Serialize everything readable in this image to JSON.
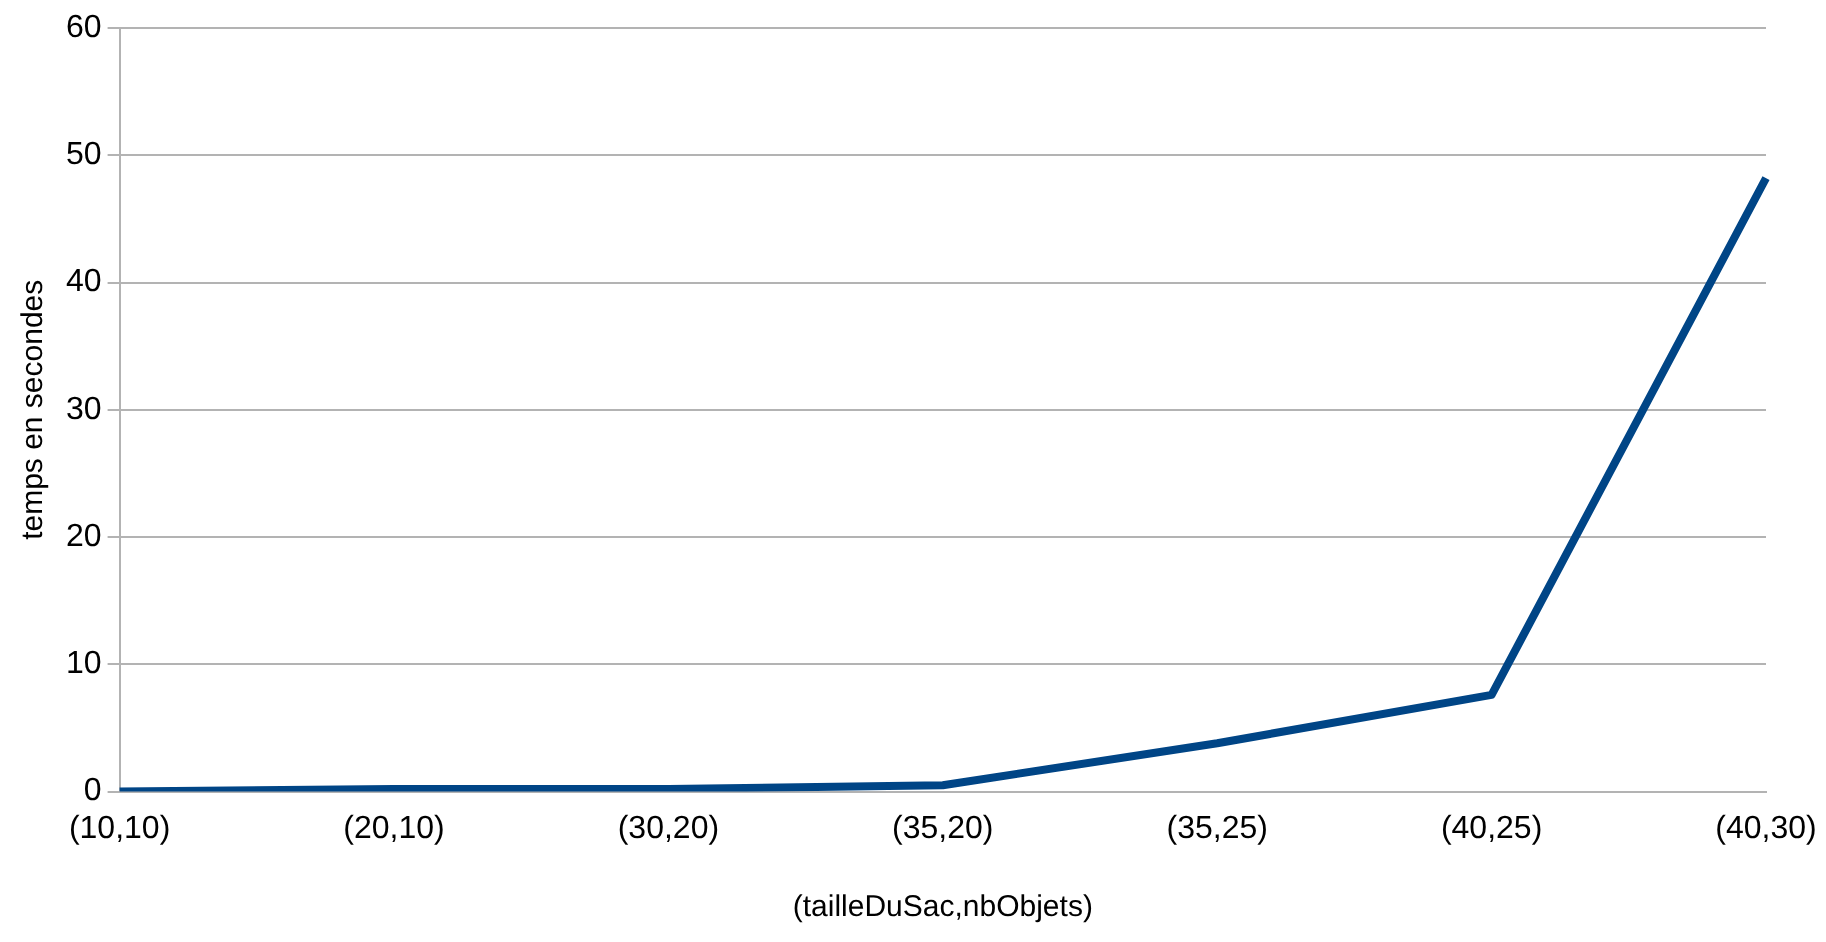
{
  "chart_data": {
    "type": "line",
    "xlabel": "(tailleDuSac,nbObjets)",
    "ylabel": "temps en secondes",
    "categories": [
      "(10,10)",
      "(20,10)",
      "(30,20)",
      "(35,20)",
      "(35,25)",
      "(40,25)",
      "(40,30)"
    ],
    "series": [
      {
        "color": "#004586",
        "values": [
          0.0,
          0.2,
          0.2,
          0.5,
          3.8,
          7.6,
          48.2
        ]
      }
    ],
    "ylim": [
      0,
      60
    ],
    "yticks": [
      0,
      10,
      20,
      30,
      40,
      50,
      60
    ],
    "grid": "y",
    "legend": false,
    "marker": "none",
    "line_style": "solid"
  }
}
